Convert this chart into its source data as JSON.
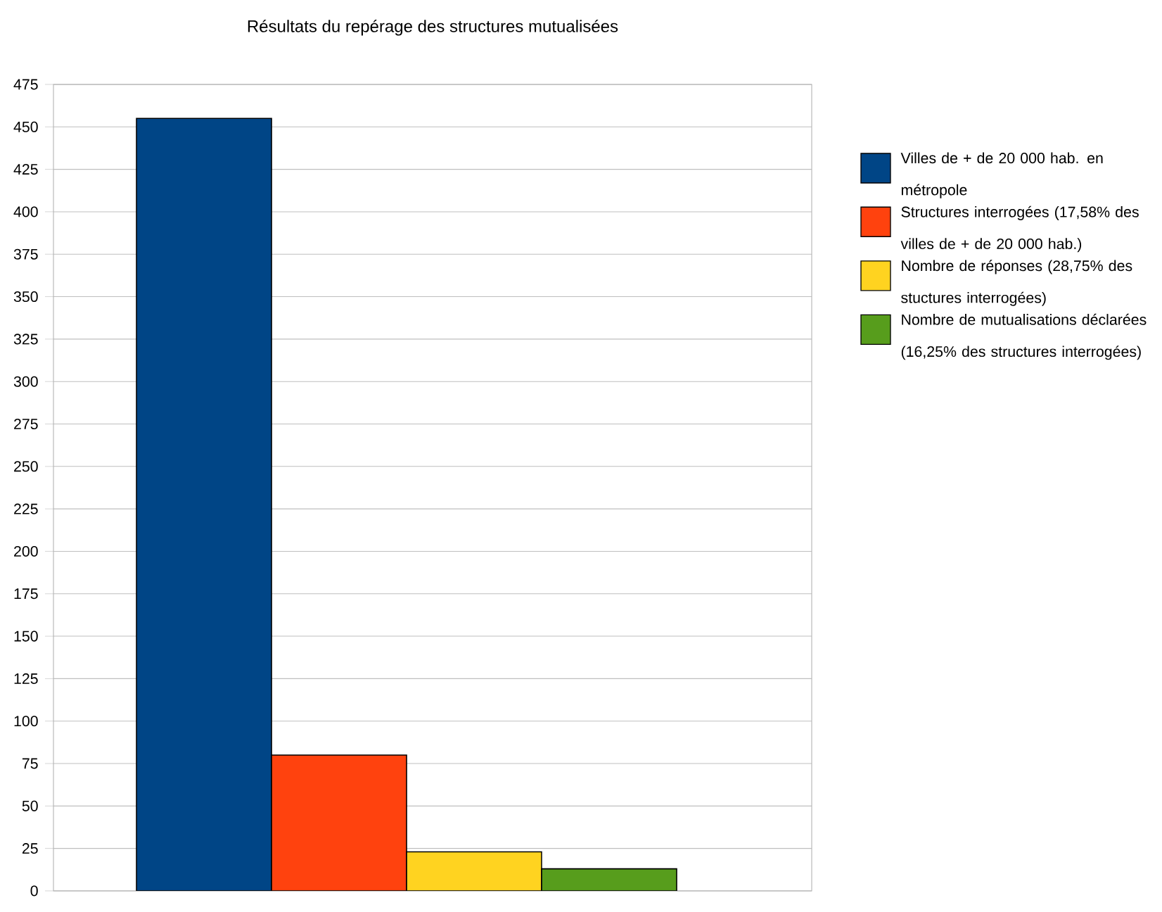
{
  "chart_data": {
    "type": "bar",
    "title": "Résultats du repérage des structures mutualisées",
    "categories": [
      null
    ],
    "series": [
      {
        "name": "Villes de + de 20 000 hab. en métropole",
        "color": "#004586",
        "values": [
          455
        ]
      },
      {
        "name": "Structures interrogées (17,58% des villes de + de 20 000 hab.)",
        "color": "#ff420e",
        "values": [
          80
        ]
      },
      {
        "name": "Nombre de réponses (28,75% des stuctures interrogées)",
        "color": "#ffd320",
        "values": [
          23
        ]
      },
      {
        "name": "Nombre de mutualisations déclarées (16,25% des structures interrogées)",
        "color": "#579d1c",
        "values": [
          13
        ]
      }
    ],
    "ylim": [
      0,
      475
    ],
    "yticks": [
      0,
      25,
      50,
      75,
      100,
      125,
      150,
      175,
      200,
      225,
      250,
      275,
      300,
      325,
      350,
      375,
      400,
      425,
      450,
      475
    ],
    "grid": "y",
    "legend": "right"
  }
}
